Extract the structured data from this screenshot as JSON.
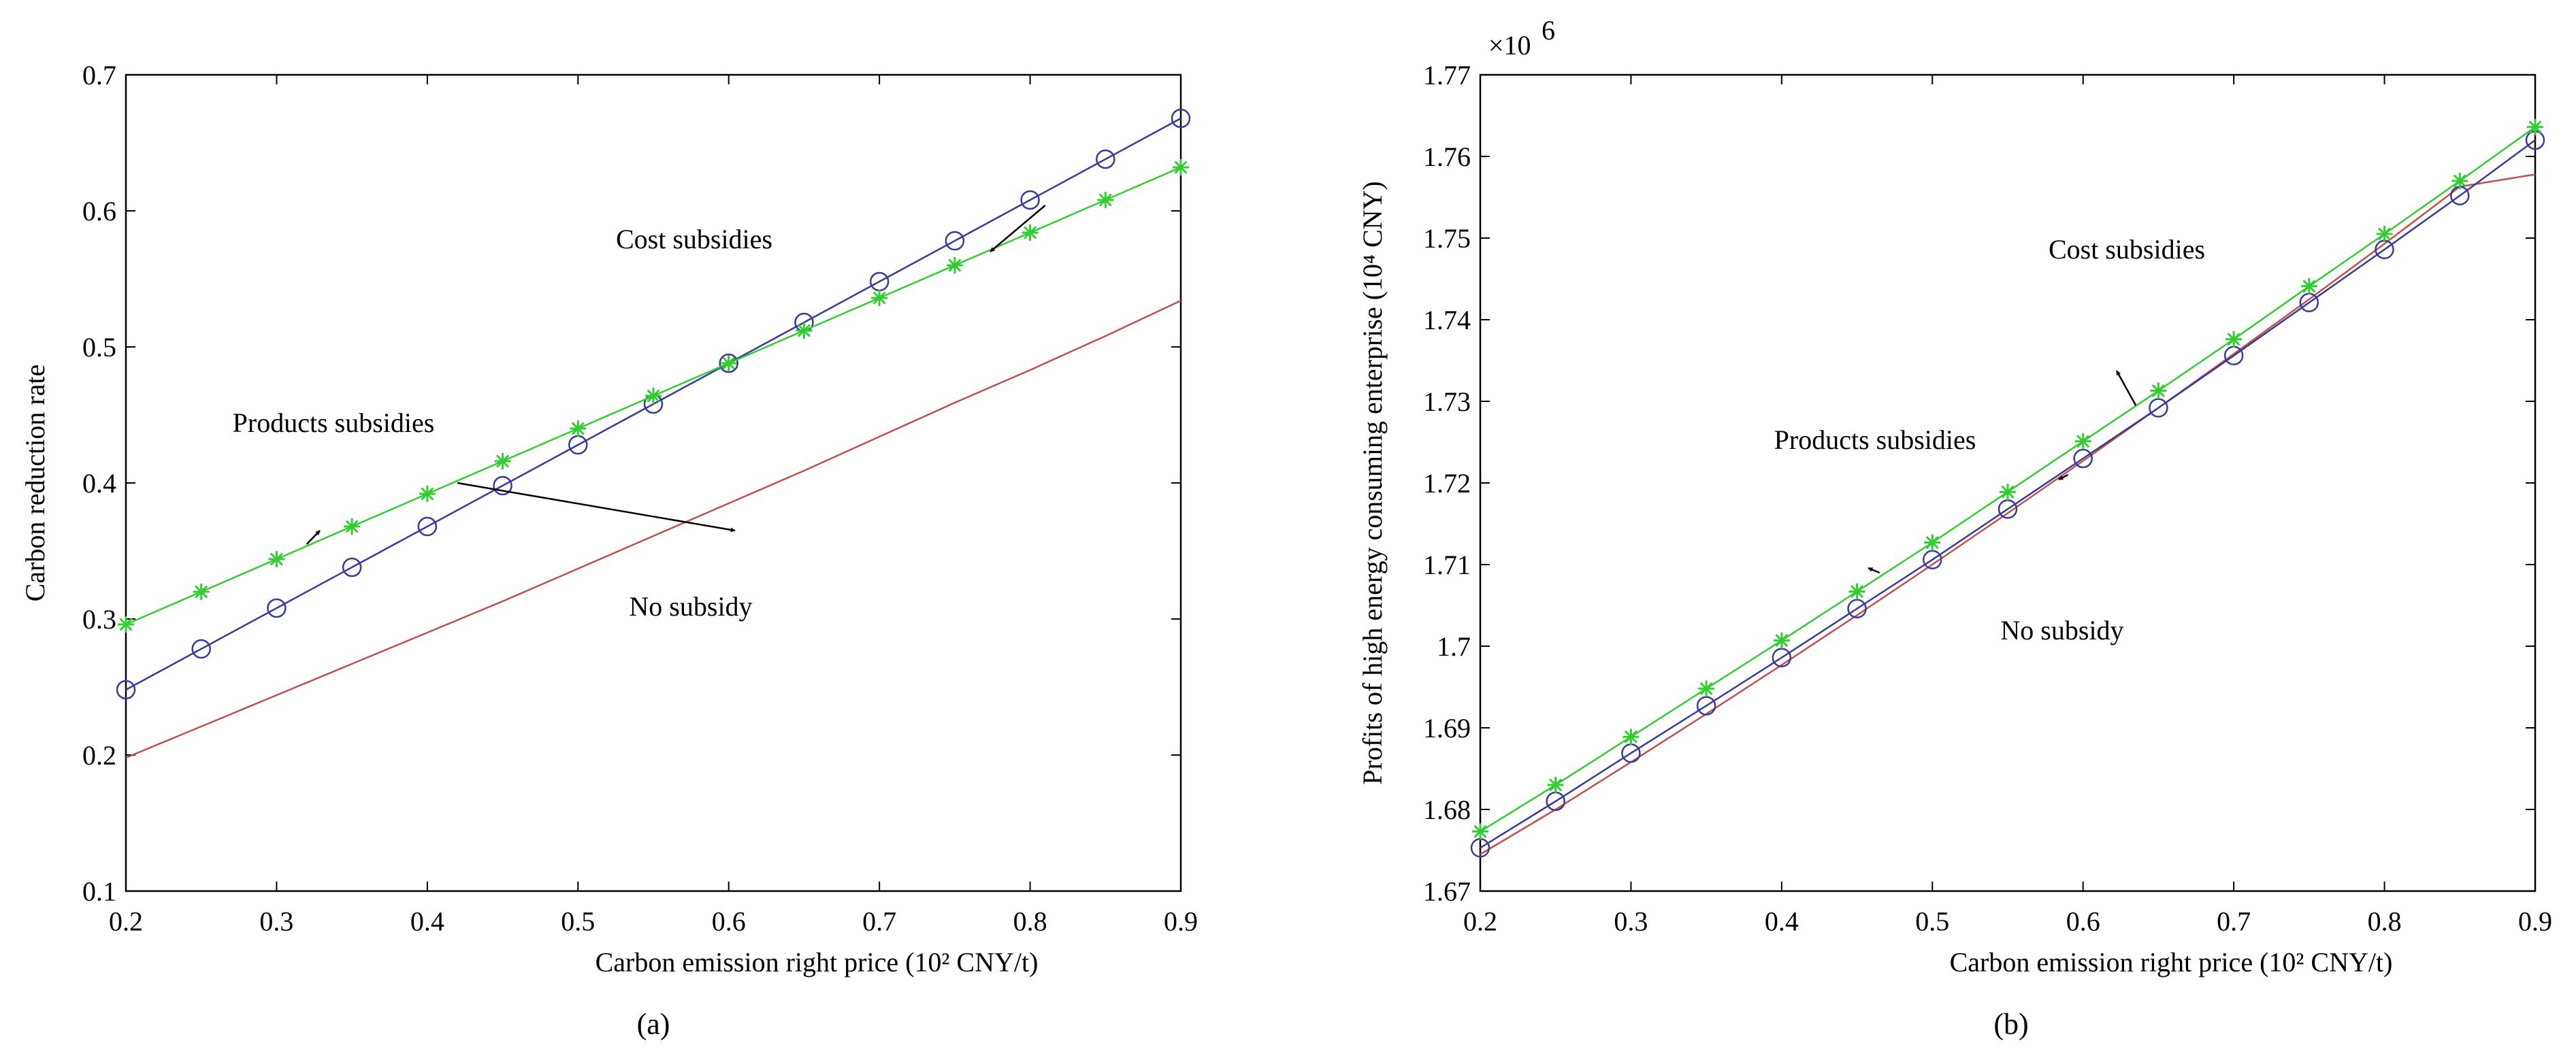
{
  "chart_data": [
    {
      "type": "line",
      "panel_label": "(a)",
      "xlabel": "Carbon emission right price (10² CNY/t)",
      "ylabel": "Carbon reduction rate",
      "xlim": [
        0.2,
        0.9
      ],
      "ylim": [
        0.1,
        0.7
      ],
      "xticks": [
        "0.2",
        "0.3",
        "0.4",
        "0.5",
        "0.6",
        "0.7",
        "0.8",
        "0.9"
      ],
      "yticks": [
        "0.1",
        "0.2",
        "0.3",
        "0.4",
        "0.5",
        "0.6",
        "0.7"
      ],
      "x": [
        0.2,
        0.25,
        0.3,
        0.35,
        0.4,
        0.45,
        0.5,
        0.55,
        0.6,
        0.65,
        0.7,
        0.75,
        0.8,
        0.85,
        0.9
      ],
      "series": [
        {
          "name": "No subsidy",
          "color": "#c0504d",
          "marker": "none",
          "values": [
            0.198,
            0.221,
            0.244,
            0.267,
            0.29,
            0.313,
            0.337,
            0.361,
            0.385,
            0.409,
            0.434,
            0.459,
            0.483,
            0.508,
            0.534
          ]
        },
        {
          "name": "Cost subsidies",
          "color": "#3a3a9a",
          "marker": "circle",
          "values": [
            0.248,
            0.278,
            0.308,
            0.338,
            0.368,
            0.398,
            0.428,
            0.458,
            0.488,
            0.518,
            0.548,
            0.578,
            0.608,
            0.638,
            0.668
          ]
        },
        {
          "name": "Products subsidies",
          "color": "#33cc33",
          "marker": "star",
          "values": [
            0.296,
            0.32,
            0.344,
            0.368,
            0.392,
            0.416,
            0.44,
            0.464,
            0.488,
            0.512,
            0.536,
            0.56,
            0.584,
            0.608,
            0.632
          ]
        }
      ],
      "annotations": [
        {
          "text": "Cost subsidies",
          "target": "Cost subsidies",
          "at_x": 0.81,
          "at_y": 0.604,
          "direction": "left"
        },
        {
          "text": "Products subsidies",
          "target": "Products subsidies",
          "at_x": 0.32,
          "at_y": 0.355,
          "direction": "up"
        },
        {
          "text": "No subsidy",
          "target": "No subsidy",
          "at_x": 0.42,
          "at_y": 0.4,
          "direction": "down"
        }
      ]
    },
    {
      "type": "line",
      "panel_label": "(b)",
      "xlabel": "Carbon emission right price (10² CNY/t)",
      "ylabel": "Profits of high energy consuming enterprise (10⁴ CNY)",
      "exponent_label": "×10",
      "exponent_power": "6",
      "xlim": [
        0.2,
        0.9
      ],
      "ylim": [
        1.67,
        1.77
      ],
      "xticks": [
        "0.2",
        "0.3",
        "0.4",
        "0.5",
        "0.6",
        "0.7",
        "0.8",
        "0.9"
      ],
      "yticks": [
        "1.67",
        "1.68",
        "1.69",
        "1.7",
        "1.71",
        "1.72",
        "1.73",
        "1.74",
        "1.75",
        "1.76",
        "1.77"
      ],
      "x": [
        0.2,
        0.25,
        0.3,
        0.35,
        0.4,
        0.45,
        0.5,
        0.55,
        0.6,
        0.65,
        0.7,
        0.75,
        0.8,
        0.85,
        0.9
      ],
      "series": [
        {
          "name": "No subsidy",
          "color": "#c0504d",
          "marker": "none",
          "values": [
            1.6745,
            1.68,
            1.6858,
            1.6917,
            1.6977,
            1.7038,
            1.71,
            1.7163,
            1.7227,
            1.7292,
            1.7358,
            1.7425,
            1.7493,
            1.7563,
            1.7578
          ]
        },
        {
          "name": "Cost subsidies",
          "color": "#3a3a9a",
          "marker": "circle",
          "values": [
            1.6753,
            1.681,
            1.6869,
            1.6927,
            1.6986,
            1.7046,
            1.7106,
            1.7168,
            1.723,
            1.7292,
            1.7356,
            1.7421,
            1.7486,
            1.7552,
            1.762
          ]
        },
        {
          "name": "Products subsidies",
          "color": "#33cc33",
          "marker": "star",
          "values": [
            1.6773,
            1.683,
            1.6889,
            1.6948,
            1.7007,
            1.7067,
            1.7127,
            1.7189,
            1.7251,
            1.7313,
            1.7376,
            1.7441,
            1.7505,
            1.757,
            1.7636
          ]
        }
      ],
      "annotations": [
        {
          "text": "Cost subsidies",
          "target": "Cost subsidies",
          "at_x": 0.635,
          "at_y": 1.7295,
          "direction": "up"
        },
        {
          "text": "Products subsidies",
          "target": "Products subsidies",
          "at_x": 0.465,
          "at_y": 1.709,
          "direction": "up"
        },
        {
          "text": "No subsidy",
          "target": "No subsidy",
          "at_x": 0.59,
          "at_y": 1.721,
          "direction": "down"
        }
      ]
    }
  ]
}
